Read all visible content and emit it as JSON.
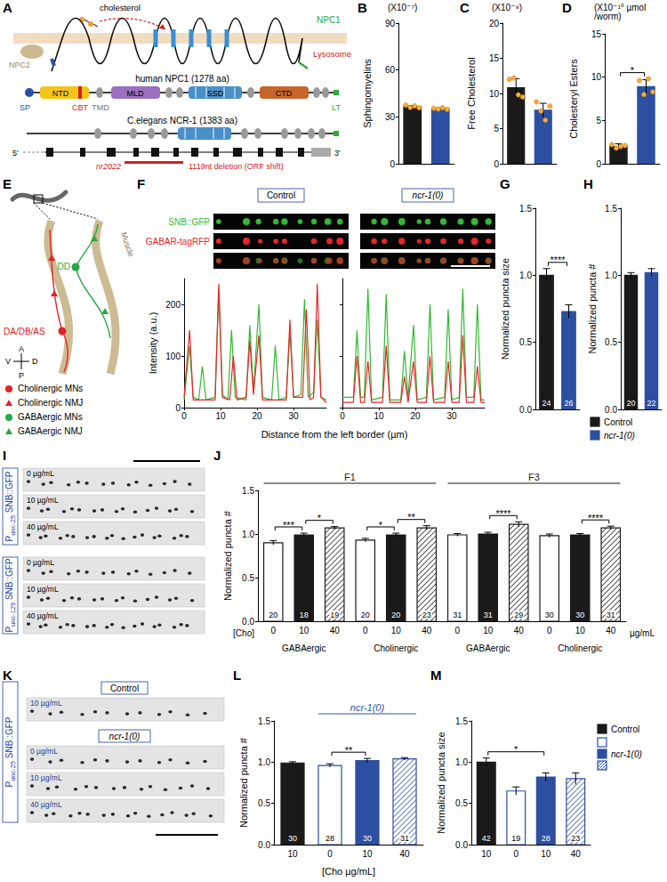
{
  "panel_letters": [
    "A",
    "B",
    "C",
    "D",
    "E",
    "F",
    "G",
    "H",
    "I",
    "J",
    "K",
    "L",
    "M"
  ],
  "diagram_A": {
    "cholesterol": "cholesterol",
    "npc2": "NPC2",
    "npc1": "NPC1",
    "lysosome": "Lysosome",
    "human_title": "human NPC1 (1278 aa)",
    "human_domains": [
      "SP",
      "NTD",
      "CBT",
      "TMD",
      "MLD",
      "SSD",
      "CTD",
      "LT"
    ],
    "worm_title": "C.elegans NCR-1 (1383 aa)",
    "gene_ends": [
      "5'",
      "3'"
    ],
    "allele": "nr2022",
    "deletion": "1119nt deletion (ORF shift)"
  },
  "diagram_E": {
    "neurons": [
      "DD",
      "DA/DB/AS"
    ],
    "tissue": "Muscle",
    "axes": {
      "anterior": "A",
      "posterior": "P",
      "ventral": "V",
      "dorsal": "D"
    },
    "legend": [
      {
        "text": "Cholinergic MNs",
        "color": "#e32227",
        "marker": "circle"
      },
      {
        "text": "Cholinergic NMJ",
        "color": "#e32227",
        "marker": "triangle"
      },
      {
        "text": "GABAergic MNs",
        "color": "#27a844",
        "marker": "circle"
      },
      {
        "text": "GABAergic NMJ",
        "color": "#27a844",
        "marker": "triangle"
      }
    ]
  },
  "images_I": {
    "groups": [
      {
        "label": "Punc-25 SNB::GFP",
        "rows": [
          "0 µg/mL",
          "10 µg/mL",
          "40 µg/mL"
        ]
      },
      {
        "label": "Punc-129 SNB::GFP",
        "rows": [
          "0 µg/mL",
          "10 µg/mL",
          "40 µg/mL"
        ]
      }
    ]
  },
  "images_K": {
    "label": "Punc-25 SNB::GFP",
    "groups": [
      {
        "title": "Control",
        "rows": [
          "10 µg/mL"
        ]
      },
      {
        "title": "ncr-1(0)",
        "rows": [
          "0 µg/mL",
          "10 µg/mL",
          "40 µg/mL"
        ]
      }
    ]
  },
  "chart_data": [
    {
      "type": "bar",
      "ylabel": "Sphingomyelins",
      "annotations": [
        "(X10⁻⁷)"
      ],
      "categories": [
        null,
        null
      ],
      "values": [
        36.5,
        35.2
      ],
      "errors": [
        0.8,
        0.6
      ],
      "points": [
        [
          37.5,
          36,
          37,
          35.8
        ],
        [
          35.5,
          35,
          35.8,
          34.8
        ]
      ],
      "colors": [
        "#1a1a1a",
        "#2d4fa1"
      ],
      "ylim": [
        0,
        90
      ],
      "yticks": [
        0,
        30,
        60,
        90
      ],
      "tick_labels": "y"
    },
    {
      "type": "bar",
      "ylabel": "Free Cholesterol",
      "annotations": [
        "(X10⁻⁹)"
      ],
      "categories": [
        null,
        null
      ],
      "values": [
        10.8,
        7.6
      ],
      "errors": [
        1.3,
        1.0
      ],
      "points": [
        [
          12,
          12.2,
          9.8,
          9.5
        ],
        [
          8.8,
          7.5,
          6.2,
          8.2
        ]
      ],
      "colors": [
        "#1a1a1a",
        "#2d4fa1"
      ],
      "ylim": [
        0,
        20
      ],
      "yticks": [
        0,
        5,
        10,
        15,
        20
      ],
      "tick_labels": "y"
    },
    {
      "type": "bar",
      "ylabel": "Cholesteryl Esters",
      "annotations": [
        "(X10⁻¹⁰ µmol /worm)"
      ],
      "categories": [
        null,
        null
      ],
      "values": [
        2.0,
        8.9
      ],
      "errors": [
        0.3,
        0.8
      ],
      "points": [
        [
          2.2,
          1.8,
          2.0,
          2.1
        ],
        [
          9.6,
          8.0,
          9.8,
          8.3
        ]
      ],
      "significance": [
        {
          "from": 0,
          "to": 1,
          "label": "*"
        }
      ],
      "colors": [
        "#1a1a1a",
        "#2d4fa1"
      ],
      "ylim": [
        0,
        15
      ],
      "yticks": [
        0,
        5,
        10,
        15
      ],
      "tick_labels": "y"
    },
    {
      "type": "line",
      "ylabel": "Intensity (a.u.)",
      "xlabel": "Distance from the left border (µm)",
      "xlim": [
        0,
        39
      ],
      "xticks": [
        0,
        10,
        20,
        30
      ],
      "ylim": [
        0,
        250
      ],
      "yticks": [
        0,
        100,
        200
      ],
      "panels": [
        {
          "title": "Control",
          "series": [
            {
              "name": "SNB::GFP",
              "color": "#33b833",
              "x": [
                0,
                1.5,
                2.5,
                4,
                5,
                6,
                8.5,
                9.5,
                10.5,
                12,
                13,
                14,
                17,
                18,
                19,
                20.5,
                21.5,
                24,
                25,
                26,
                28,
                29,
                30,
                32,
                33,
                34,
                35.5,
                36.5,
                37.5,
                39
              ],
              "values": [
                15,
                120,
                20,
                15,
                80,
                15,
                20,
                230,
                25,
                15,
                150,
                20,
                15,
                160,
                30,
                200,
                20,
                15,
                120,
                15,
                20,
                150,
                20,
                25,
                210,
                20,
                30,
                170,
                20,
                15
              ]
            },
            {
              "name": "GABAR-tagRFP",
              "color": "#e8262a",
              "x": [
                0,
                1.5,
                2.5,
                8.5,
                9.5,
                10.5,
                12.5,
                13.5,
                14.5,
                17,
                18,
                19,
                20.5,
                21.5,
                28,
                29,
                30,
                32.5,
                33.5,
                34.5,
                35.5,
                36.5,
                37.5,
                39
              ],
              "values": [
                20,
                150,
                15,
                15,
                240,
                20,
                15,
                100,
                15,
                20,
                130,
                25,
                140,
                15,
                15,
                170,
                20,
                20,
                190,
                15,
                20,
                240,
                20,
                10
              ]
            }
          ]
        },
        {
          "title": "ncr-1(0)",
          "series": [
            {
              "name": "SNB::GFP",
              "color": "#33b833",
              "x": [
                0,
                3,
                4,
                5,
                6,
                7,
                8,
                11,
                12,
                13,
                16,
                17,
                18,
                19.5,
                20.5,
                23,
                24,
                25,
                28,
                29,
                30,
                32,
                33,
                34,
                36,
                37,
                38,
                39
              ],
              "values": [
                20,
                20,
                150,
                20,
                20,
                230,
                15,
                20,
                220,
                15,
                15,
                110,
                20,
                160,
                15,
                20,
                200,
                15,
                20,
                190,
                15,
                20,
                230,
                20,
                20,
                200,
                15,
                15
              ]
            },
            {
              "name": "GABAR-tagRFP",
              "color": "#e8262a",
              "x": [
                0,
                3,
                4,
                5,
                6,
                7,
                8,
                11,
                12,
                13,
                16,
                17,
                18,
                19.5,
                20.5,
                23,
                24,
                25,
                28,
                29,
                30,
                32,
                33,
                34,
                36,
                37,
                38,
                39
              ],
              "values": [
                10,
                10,
                100,
                10,
                10,
                90,
                10,
                10,
                120,
                10,
                10,
                60,
                10,
                90,
                10,
                10,
                100,
                10,
                10,
                90,
                10,
                10,
                140,
                10,
                10,
                80,
                10,
                10
              ]
            }
          ]
        }
      ]
    },
    {
      "type": "bar",
      "ylabel": "Normalized puncta size",
      "categories": [
        null,
        null
      ],
      "values": [
        1.0,
        0.73
      ],
      "errors": [
        0.05,
        0.05
      ],
      "n": [
        24,
        26
      ],
      "significance": [
        {
          "from": 0,
          "to": 1,
          "label": "****"
        }
      ],
      "colors": [
        "#1a1a1a",
        "#2d4fa1"
      ],
      "ylim": [
        0,
        1.5
      ],
      "yticks": [
        {
          "value": 0,
          "label": "0.0"
        },
        {
          "value": 0.5,
          "label": "0.5"
        },
        {
          "value": 1,
          "label": "1.0"
        },
        {
          "value": 1.5,
          "label": "1.5"
        }
      ],
      "tick_labels": "y"
    },
    {
      "type": "bar",
      "ylabel": "Normalized puncta #",
      "categories": [
        null,
        null
      ],
      "series": [
        {
          "name": "Control",
          "color": "#1a1a1a",
          "values": [
            1.0,
            null
          ]
        },
        {
          "name": "ncr-1(0)",
          "color": "#2d4fa1",
          "values": [
            null,
            1.02
          ]
        }
      ],
      "errors": [
        0.02,
        0.03
      ],
      "n": [
        20,
        22
      ],
      "legend": "bottom",
      "ylim": [
        0,
        1.5
      ],
      "yticks": [
        {
          "value": 0,
          "label": "0.0"
        },
        {
          "value": 0.5,
          "label": "0.5"
        },
        {
          "value": 1,
          "label": "1.0"
        },
        {
          "value": 1.5,
          "label": "1.5"
        }
      ],
      "tick_labels": "y"
    },
    {
      "type": "bar",
      "ylabel": "Normalized puncta #",
      "xlabel": "[Cho]",
      "xunit": "µg/mL",
      "categories": [
        "0",
        "10",
        "40",
        "0",
        "10",
        "40",
        "0",
        "10",
        "40",
        "0",
        "10",
        "40"
      ],
      "values": [
        0.9,
        0.99,
        1.07,
        0.93,
        0.99,
        1.07,
        0.99,
        1.0,
        1.11,
        0.98,
        0.99,
        1.07
      ],
      "errors": [
        0.025,
        0.02,
        0.015,
        0.02,
        0.02,
        0.025,
        0.015,
        0.02,
        0.03,
        0.02,
        0.015,
        0.02
      ],
      "n": [
        20,
        18,
        19,
        20,
        20,
        23,
        31,
        31,
        29,
        30,
        30,
        31
      ],
      "color": "#1a1a1a",
      "groups": [
        {
          "label": "GABAergic",
          "from": 0,
          "to": 2
        },
        {
          "label": "Cholinergic",
          "from": 3,
          "to": 5
        },
        {
          "label": "GABAergic",
          "from": 6,
          "to": 8
        },
        {
          "label": "Cholinergic",
          "from": 9,
          "to": 11
        }
      ],
      "headers": [
        {
          "label": "F1",
          "from": 0,
          "to": 5
        },
        {
          "label": "F3",
          "from": 6,
          "to": 11
        }
      ],
      "significance": [
        {
          "from": 0,
          "to": 1,
          "label": "***"
        },
        {
          "from": 1,
          "to": 2,
          "label": "*"
        },
        {
          "from": 3,
          "to": 4,
          "label": "*"
        },
        {
          "from": 4,
          "to": 5,
          "label": "**"
        },
        {
          "from": 7,
          "to": 8,
          "label": "****"
        },
        {
          "from": 10,
          "to": 11,
          "label": "****"
        }
      ],
      "ylim": [
        0,
        1.5
      ],
      "yticks": [
        {
          "value": 0,
          "label": "0.0"
        },
        {
          "value": 0.5,
          "label": "0.5"
        },
        {
          "value": 1,
          "label": "1.0"
        },
        {
          "value": 1.5,
          "label": "1.5"
        }
      ]
    },
    {
      "type": "bar",
      "ylabel": "Normalized puncta #",
      "xlabel": "[Cho µg/mL]",
      "categories": [
        "10",
        "0",
        "10",
        "40"
      ],
      "values": [
        0.99,
        0.96,
        1.02,
        1.04
      ],
      "errors": [
        0.015,
        0.02,
        0.025,
        0.015
      ],
      "n": [
        30,
        28,
        30,
        31
      ],
      "colors": [
        "#1a1a1a",
        "#2d4fa1",
        "#2d4fa1",
        "#2d4fa1"
      ],
      "headers": [
        {
          "label": "ncr-1(0)",
          "from": 1,
          "to": 3
        }
      ],
      "significance": [
        {
          "from": 1,
          "to": 2,
          "label": "**"
        }
      ],
      "ylim": [
        0,
        1.5
      ],
      "yticks": [
        {
          "value": 0,
          "label": "0.0"
        },
        {
          "value": 0.5,
          "label": "0.5"
        },
        {
          "value": 1,
          "label": "1.0"
        },
        {
          "value": 1.5,
          "label": "1.5"
        }
      ]
    },
    {
      "type": "bar",
      "ylabel": "Normalized puncta size",
      "categories": [
        "10",
        "0",
        "10",
        "40"
      ],
      "series": [
        {
          "name": "Control",
          "color": "#1a1a1a",
          "values": [
            1.0,
            null,
            null,
            null
          ]
        },
        {
          "name": "ncr-1(0)",
          "color": "#2d4fa1",
          "values": [
            null,
            0.65,
            0.82,
            0.8
          ]
        }
      ],
      "errors": [
        0.05,
        0.05,
        0.05,
        0.07
      ],
      "n": [
        42,
        19,
        28,
        23
      ],
      "significance": [
        {
          "from": 0,
          "to": 2,
          "label": "*"
        }
      ],
      "legend": "right",
      "ylim": [
        0,
        1.5
      ],
      "yticks": [
        {
          "value": 0,
          "label": "0.0"
        },
        {
          "value": 0.5,
          "label": "0.5"
        },
        {
          "value": 1,
          "label": "1.0"
        },
        {
          "value": 1.5,
          "label": "1.5"
        }
      ]
    }
  ]
}
